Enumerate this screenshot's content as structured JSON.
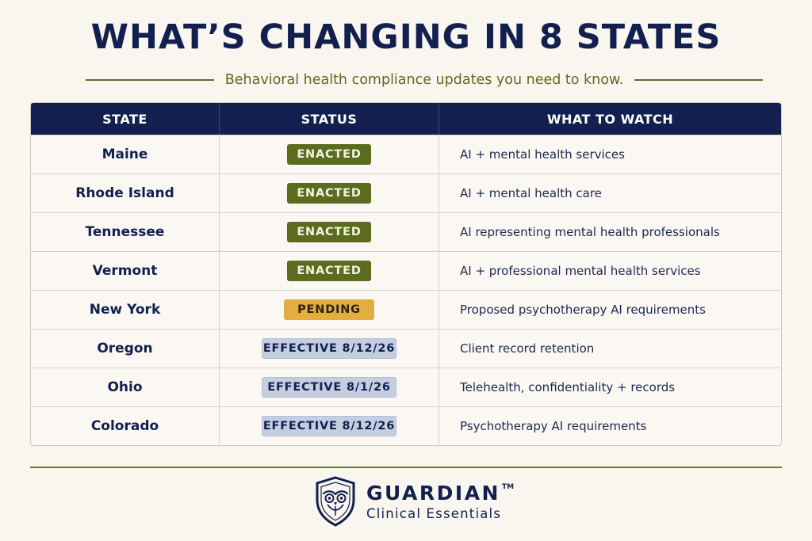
{
  "title": "WHAT’S CHANGING IN 8 STATES",
  "subtitle": "Behavioral health compliance updates you need to know.",
  "table": {
    "headers": [
      "STATE",
      "STATUS",
      "WHAT TO WATCH"
    ],
    "rows": [
      {
        "state": "Maine",
        "status": "ENACTED",
        "status_type": "enacted",
        "watch": "AI + mental health services"
      },
      {
        "state": "Rhode Island",
        "status": "ENACTED",
        "status_type": "enacted",
        "watch": "AI + mental health care"
      },
      {
        "state": "Tennessee",
        "status": "ENACTED",
        "status_type": "enacted",
        "watch": "AI representing mental health professionals"
      },
      {
        "state": "Vermont",
        "status": "ENACTED",
        "status_type": "enacted",
        "watch": "AI + professional mental health services"
      },
      {
        "state": "New York",
        "status": "PENDING",
        "status_type": "pending",
        "watch": "Proposed psychotherapy AI requirements"
      },
      {
        "state": "Oregon",
        "status": "EFFECTIVE 8/12/26",
        "status_type": "effective",
        "watch": "Client record retention"
      },
      {
        "state": "Ohio",
        "status": "EFFECTIVE 8/1/26",
        "status_type": "effective",
        "watch": "Telehealth, confidentiality + records"
      },
      {
        "state": "Colorado",
        "status": "EFFECTIVE 8/12/26",
        "status_type": "effective",
        "watch": "Psychotherapy AI requirements"
      }
    ]
  },
  "logo": {
    "icon": "owl-shield-icon",
    "name": "GUARDIAN",
    "trademark": "TM",
    "tagline": "Clinical Essentials"
  },
  "colors": {
    "navy": "#13204f",
    "olive": "#5b6c1f",
    "gold": "#e3ae3e",
    "light_blue": "#c3cee0",
    "background": "#f9f6f0"
  }
}
